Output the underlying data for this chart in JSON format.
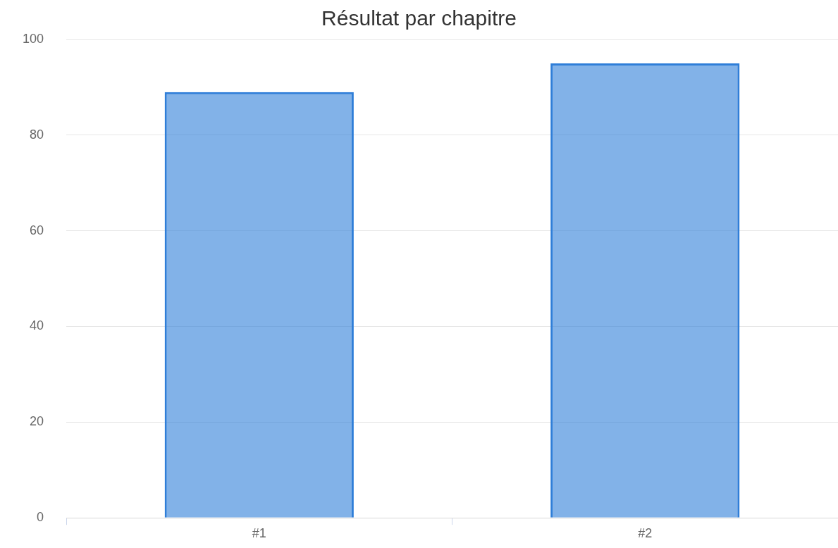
{
  "chart_data": {
    "type": "bar",
    "title": "Résultat par chapitre",
    "categories": [
      "#1",
      "#2"
    ],
    "values": [
      89,
      95
    ],
    "color": "#2f7ed8",
    "ylim": [
      0,
      100
    ],
    "yticks": [
      0,
      20,
      40,
      60,
      80,
      100
    ],
    "grid": "y",
    "legend": false
  }
}
